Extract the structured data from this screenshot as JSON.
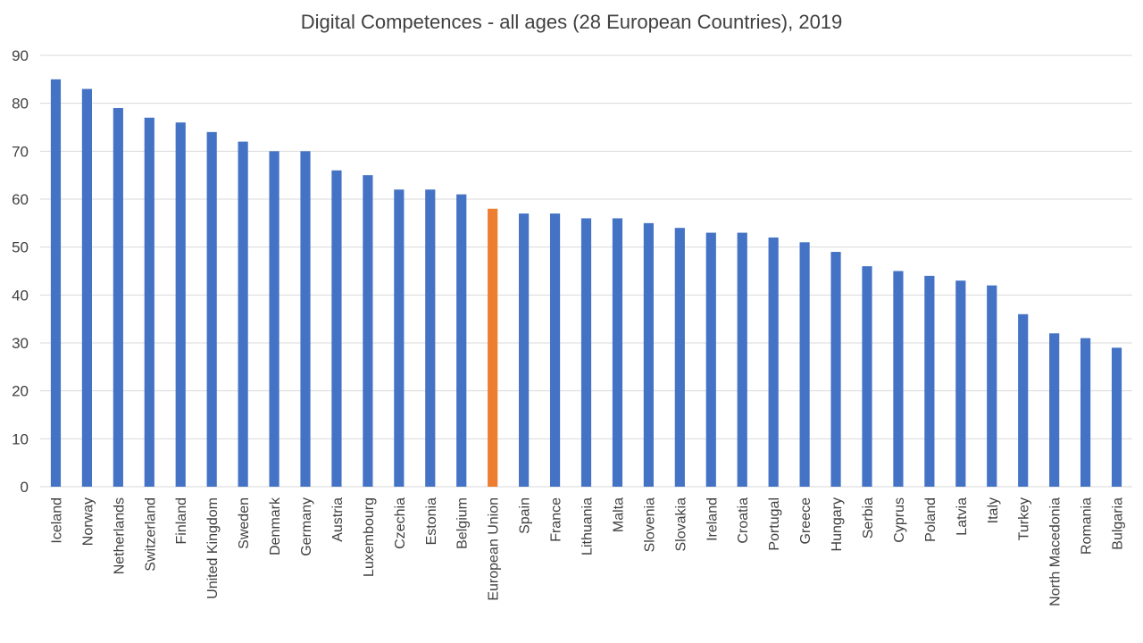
{
  "chart_data": {
    "type": "bar",
    "title": "Digital Competences - all ages (28 European Countries), 2019",
    "categories": [
      "Iceland",
      "Norway",
      "Netherlands",
      "Switzerland",
      "Finland",
      "United Kingdom",
      "Sweden",
      "Denmark",
      "Germany",
      "Austria",
      "Luxembourg",
      "Czechia",
      "Estonia",
      "Belgium",
      "European Union",
      "Spain",
      "France",
      "Lithuania",
      "Malta",
      "Slovenia",
      "Slovakia",
      "Ireland",
      "Croatia",
      "Portugal",
      "Greece",
      "Hungary",
      "Serbia",
      "Cyprus",
      "Poland",
      "Latvia",
      "Italy",
      "Turkey",
      "North Macedonia",
      "Romania",
      "Bulgaria"
    ],
    "values": [
      85,
      83,
      79,
      77,
      76,
      74,
      72,
      70,
      70,
      66,
      65,
      62,
      62,
      61,
      58,
      57,
      57,
      56,
      56,
      55,
      54,
      53,
      53,
      52,
      51,
      49,
      46,
      45,
      44,
      43,
      42,
      36,
      32,
      31,
      29
    ],
    "ylim": [
      0,
      90
    ],
    "yticks": [
      0,
      10,
      20,
      30,
      40,
      50,
      60,
      70,
      80,
      90
    ],
    "xlabel": "",
    "ylabel": "",
    "grid": true,
    "legend": "none",
    "colors": {
      "default": "#4472C4",
      "highlight": "#ED7D31",
      "grid": "#D9D9D9"
    },
    "highlight_category": "European Union"
  }
}
